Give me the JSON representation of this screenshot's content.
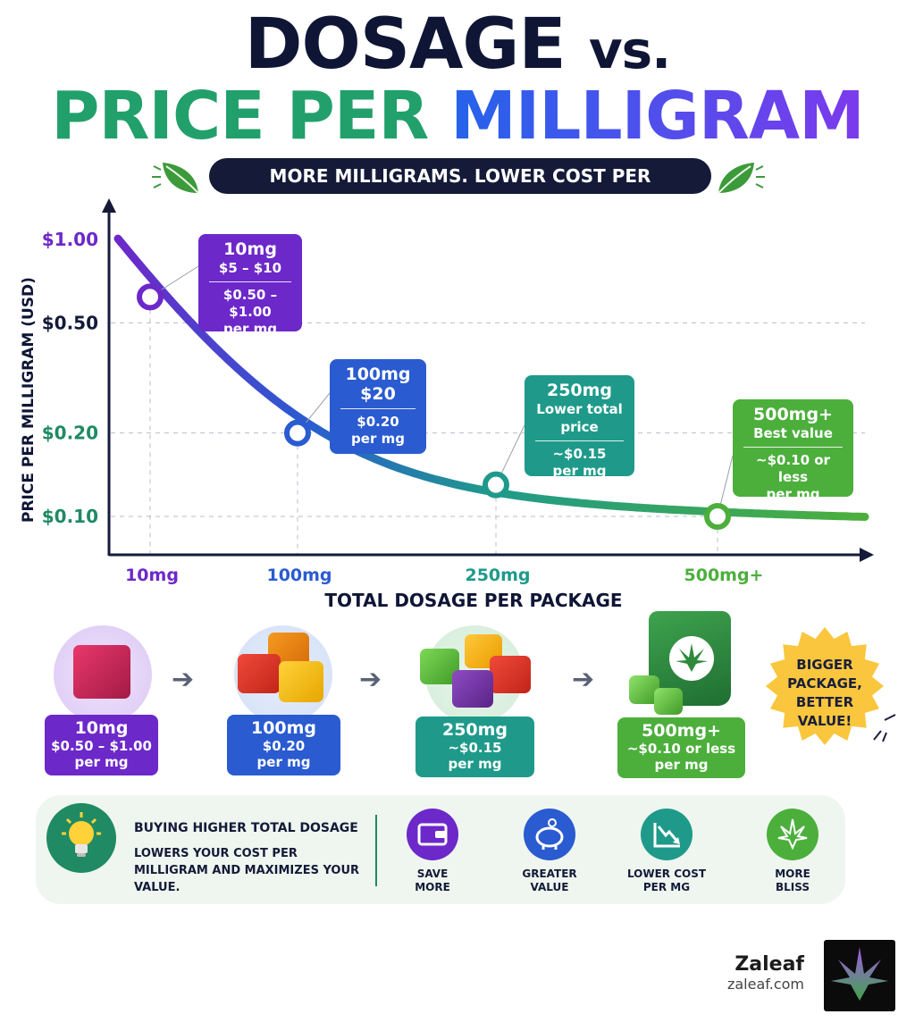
{
  "title_line1_main": "DOSAGE",
  "title_line1_vs": "vs.",
  "title_line2_green": "PRICE PER",
  "title_line2_purple": "MILLIGRAM",
  "tagline": "MORE MILLIGRAMS. LOWER COST PER MILLIGRAM.",
  "colors": {
    "purple": "#6d28c9",
    "blue": "#2a5bd0",
    "teal": "#1f9a8a",
    "green": "#4caf3c",
    "dark": "#141a38"
  },
  "chart_data": {
    "type": "line",
    "title": "",
    "xlabel": "TOTAL DOSAGE PER PACKAGE",
    "ylabel": "PRICE PER MILLIGRAM (USD)",
    "y_scale": "log",
    "ylim": [
      0.08,
      1.0
    ],
    "y_ticks": [
      "$1.00",
      "$0.50",
      "$0.20",
      "$0.10"
    ],
    "y_tick_values": [
      1.0,
      0.5,
      0.2,
      0.1
    ],
    "categories": [
      "10mg",
      "100mg",
      "250mg",
      "500mg+"
    ],
    "values": [
      0.62,
      0.2,
      0.13,
      0.1
    ],
    "grid": true,
    "callouts": [
      {
        "head": "10mg",
        "sub": "$5 – $10",
        "price": "$0.50 – $1.00",
        "unit": "per mg"
      },
      {
        "head": "100mg",
        "sub": "$20",
        "price": "$0.20",
        "unit": "per mg"
      },
      {
        "head": "250mg",
        "sub": "Lower total price",
        "price": "~$0.15",
        "unit": "per mg"
      },
      {
        "head": "500mg+",
        "sub": "Best value",
        "price": "~$0.10 or less",
        "unit": "per mg"
      }
    ]
  },
  "products": [
    {
      "head": "10mg",
      "price": "$0.50 – $1.00",
      "unit": "per mg"
    },
    {
      "head": "100mg",
      "price": "$0.20",
      "unit": "per mg"
    },
    {
      "head": "250mg",
      "price": "~$0.15",
      "unit": "per mg"
    },
    {
      "head": "500mg+",
      "price": "~$0.10 or less",
      "unit": "per mg"
    }
  ],
  "badge_text": [
    "BIGGER",
    "PACKAGE,",
    "BETTER",
    "VALUE!"
  ],
  "panel": {
    "heading": "BUYING HIGHER TOTAL DOSAGE",
    "text": "LOWERS YOUR COST PER MILLIGRAM AND MAXIMIZES YOUR VALUE.",
    "benefits": [
      {
        "line1": "SAVE",
        "line2": "MORE",
        "icon": "wallet-icon"
      },
      {
        "line1": "GREATER",
        "line2": "VALUE",
        "icon": "piggy-bank-icon"
      },
      {
        "line1": "LOWER COST",
        "line2": "PER MG",
        "icon": "trend-down-icon"
      },
      {
        "line1": "MORE",
        "line2": "BLISS",
        "icon": "leaf-icon"
      }
    ]
  },
  "brand": {
    "name": "Zaleaf",
    "url": "zaleaf.com"
  }
}
